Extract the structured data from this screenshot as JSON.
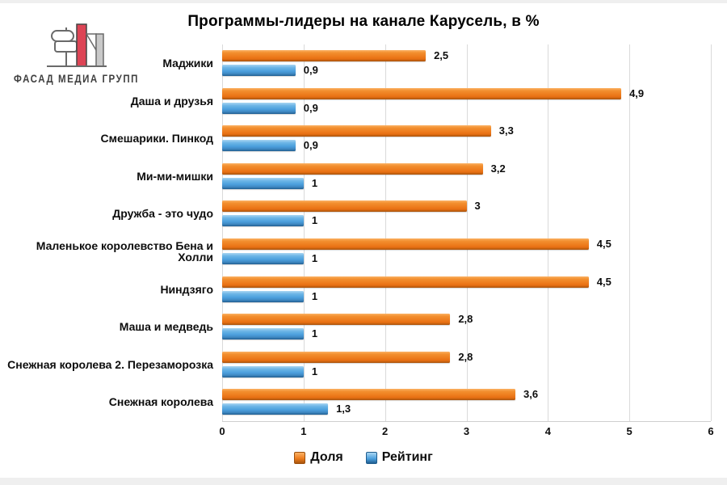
{
  "logo": {
    "text": "ФАСАД МЕДИА ГРУПП",
    "mark_red": "#dd4455",
    "mark_gray": "#c9c9c9",
    "outline": "#6a6a6a"
  },
  "title": "Программы-лидеры на канале Карусель, в %",
  "colors": {
    "dolya": "#ED7D1E",
    "reyting": "#4B9FDD",
    "gridline": "#DADADA"
  },
  "chart_data": {
    "type": "bar",
    "orientation": "horizontal",
    "title": "Программы-лидеры на канале Карусель, в %",
    "categories": [
      "Маджики",
      "Даша и друзья",
      "Смешарики. Пинкод",
      "Ми-ми-мишки",
      "Дружба - это чудо",
      "Маленькое королевство Бена и Холли",
      "Ниндзяго",
      "Маша и медведь",
      "Снежная королева 2. Перезаморозка",
      "Снежная королева"
    ],
    "series": [
      {
        "name": "Доля",
        "key": "dolya",
        "color": "#ED7D1E",
        "values": [
          2.5,
          4.9,
          3.3,
          3.2,
          3,
          4.5,
          4.5,
          2.8,
          2.8,
          3.6
        ],
        "value_labels": [
          "2,5",
          "4,9",
          "3,3",
          "3,2",
          "3",
          "4,5",
          "4,5",
          "2,8",
          "2,8",
          "3,6"
        ]
      },
      {
        "name": "Рейтинг",
        "key": "reyting",
        "color": "#4B9FDD",
        "values": [
          0.9,
          0.9,
          0.9,
          1,
          1,
          1,
          1,
          1,
          1,
          1.3
        ],
        "value_labels": [
          "0,9",
          "0,9",
          "0,9",
          "1",
          "1",
          "1",
          "1",
          "1",
          "1",
          "1,3"
        ]
      }
    ],
    "xlim": [
      0,
      6
    ],
    "x_ticks": [
      "0",
      "1",
      "2",
      "3",
      "4",
      "5",
      "6"
    ],
    "grid": true,
    "legend_position": "bottom"
  }
}
